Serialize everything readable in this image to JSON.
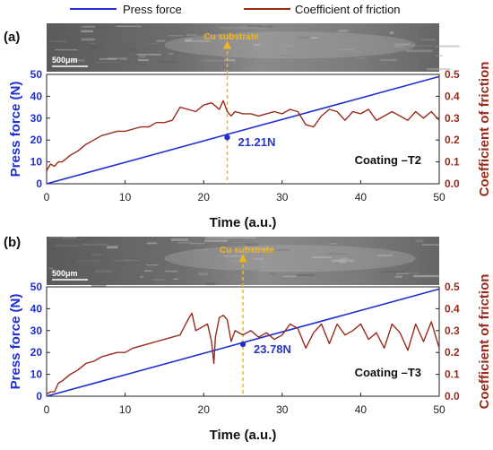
{
  "legend": {
    "items": [
      {
        "label": "Press force",
        "color": "#1f2fd1"
      },
      {
        "label": "Coefficient of friction",
        "color": "#9a2b1b"
      }
    ]
  },
  "colors": {
    "force": "#1f2fd1",
    "cof": "#9a2b1b",
    "cu": "#f2b520",
    "force_axis": "#1f2fd1",
    "cof_axis": "#9a2b1b"
  },
  "panels": [
    {
      "label": "(a)",
      "coating_label": "Coating –T2",
      "force_label": "21.21N",
      "cu_label": "Cu substrate",
      "scale_bar_label": "500μm"
    },
    {
      "label": "(b)",
      "coating_label": "Coating –T3",
      "force_label": "23.78N",
      "cu_label": "Cu substrate",
      "scale_bar_label": "500μm"
    }
  ],
  "chart_data": [
    {
      "type": "line",
      "panel": "(a)",
      "xlabel": "Time (a.u.)",
      "ylabel_left": "Press force (N)",
      "ylabel_right": "Coefficient of friction",
      "xlim": [
        0,
        50
      ],
      "ylim_left": [
        0,
        50
      ],
      "ylim_right": [
        0.0,
        0.5
      ],
      "x_ticks": [
        0,
        10,
        20,
        30,
        40,
        50
      ],
      "y_ticks_left": [
        0,
        10,
        20,
        30,
        40,
        50
      ],
      "y_ticks_right": [
        "0.0",
        "0.1",
        "0.2",
        "0.3",
        "0.4",
        "0.5"
      ],
      "grid": false,
      "legend_position": "top",
      "series": [
        {
          "name": "Press force",
          "axis": "left",
          "x": [
            0,
            50
          ],
          "y": [
            0,
            49
          ]
        },
        {
          "name": "Coefficient of friction",
          "axis": "right",
          "x": [
            0,
            0.5,
            1,
            1.5,
            2,
            3,
            4,
            5,
            6,
            7,
            8,
            9,
            10,
            11,
            12,
            13,
            14,
            15,
            16,
            17,
            18,
            19,
            20,
            21,
            22,
            22.5,
            23,
            23.5,
            24,
            25,
            26,
            27,
            28,
            29,
            30,
            31,
            32,
            33,
            34,
            35,
            36,
            37,
            38,
            39,
            40,
            41,
            42,
            43,
            44,
            45,
            46,
            47,
            48,
            49,
            50
          ],
          "y": [
            0.06,
            0.09,
            0.08,
            0.1,
            0.1,
            0.13,
            0.15,
            0.18,
            0.2,
            0.22,
            0.23,
            0.24,
            0.24,
            0.25,
            0.26,
            0.26,
            0.28,
            0.28,
            0.29,
            0.35,
            0.34,
            0.33,
            0.36,
            0.37,
            0.34,
            0.38,
            0.33,
            0.31,
            0.33,
            0.32,
            0.32,
            0.31,
            0.32,
            0.33,
            0.32,
            0.34,
            0.33,
            0.27,
            0.26,
            0.31,
            0.34,
            0.33,
            0.29,
            0.33,
            0.32,
            0.34,
            0.29,
            0.31,
            0.33,
            0.31,
            0.29,
            0.33,
            0.3,
            0.33,
            0.29
          ]
        }
      ],
      "annotation_point": {
        "x": 23,
        "y": 21.21
      }
    },
    {
      "type": "line",
      "panel": "(b)",
      "xlabel": "Time (a.u.)",
      "ylabel_left": "Press force (N)",
      "ylabel_right": "Coefficient of friction",
      "xlim": [
        0,
        50
      ],
      "ylim_left": [
        0,
        50
      ],
      "ylim_right": [
        0.0,
        0.5
      ],
      "x_ticks": [
        0,
        10,
        20,
        30,
        40,
        50
      ],
      "y_ticks_left": [
        0,
        10,
        20,
        30,
        40,
        50
      ],
      "y_ticks_right": [
        "0.0",
        "0.1",
        "0.2",
        "0.3",
        "0.4",
        "0.5"
      ],
      "grid": false,
      "series": [
        {
          "name": "Press force",
          "axis": "left",
          "x": [
            0,
            50
          ],
          "y": [
            0,
            49
          ]
        },
        {
          "name": "Coefficient of friction",
          "axis": "right",
          "x": [
            0,
            0.5,
            1,
            1.5,
            2,
            3,
            4,
            5,
            6,
            7,
            8,
            9,
            10,
            11,
            12,
            13,
            14,
            15,
            16,
            17,
            18,
            18.5,
            19,
            20,
            20.5,
            21,
            21.3,
            21.5,
            22,
            22.5,
            23,
            23.5,
            24,
            24.5,
            25,
            26,
            27,
            28,
            29,
            30,
            31,
            32,
            33,
            34,
            35,
            36,
            37,
            38,
            39,
            40,
            41,
            42,
            43,
            44,
            45,
            46,
            47,
            48,
            49,
            50
          ],
          "y": [
            0.01,
            0.02,
            0.02,
            0.06,
            0.07,
            0.1,
            0.12,
            0.15,
            0.16,
            0.18,
            0.19,
            0.2,
            0.2,
            0.22,
            0.23,
            0.24,
            0.25,
            0.26,
            0.27,
            0.28,
            0.35,
            0.38,
            0.3,
            0.32,
            0.33,
            0.25,
            0.15,
            0.27,
            0.36,
            0.37,
            0.35,
            0.25,
            0.3,
            0.29,
            0.28,
            0.3,
            0.27,
            0.29,
            0.26,
            0.28,
            0.33,
            0.31,
            0.22,
            0.29,
            0.33,
            0.24,
            0.33,
            0.28,
            0.3,
            0.33,
            0.26,
            0.29,
            0.22,
            0.33,
            0.29,
            0.21,
            0.33,
            0.25,
            0.34,
            0.22
          ]
        }
      ],
      "annotation_point": {
        "x": 25,
        "y": 23.78
      }
    }
  ],
  "axes_text": {
    "xlabel": "Time (a.u.)",
    "ylabel_left": "Press force (N)",
    "ylabel_right": "Coefficient of friction"
  }
}
